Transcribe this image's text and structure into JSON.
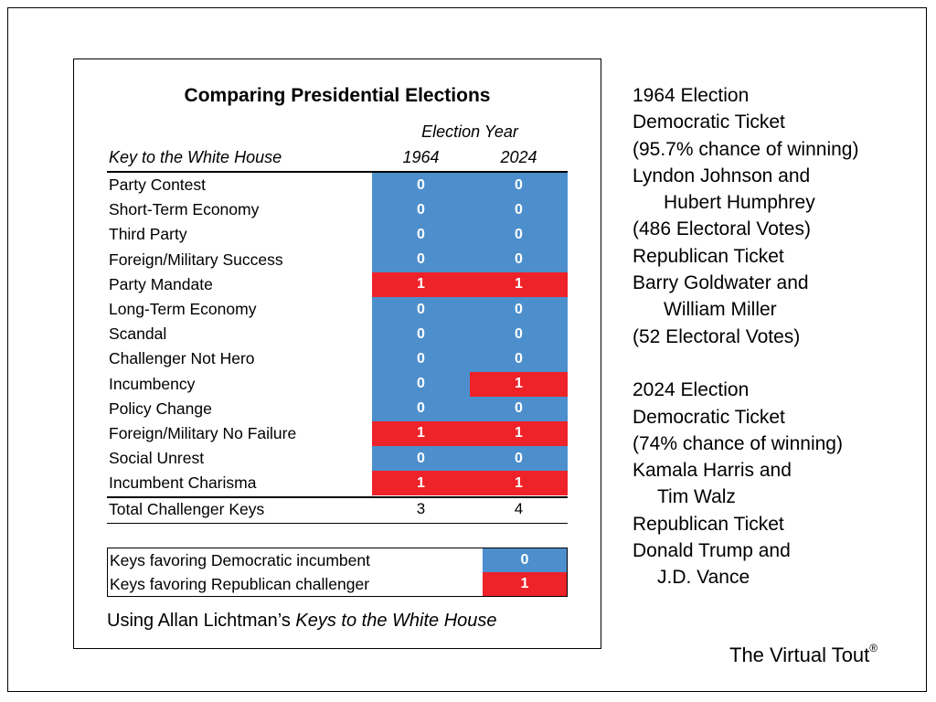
{
  "colors": {
    "blue": "#4d8fcc",
    "red": "#ee2229",
    "border": "#000000"
  },
  "chart_data": {
    "type": "table",
    "title": "Comparing Presidential Elections",
    "column_group": "Election Year",
    "row_header": "Key to the White House",
    "columns": [
      "1964",
      "2024"
    ],
    "rows": [
      {
        "label": "Party Contest",
        "values": [
          0,
          0
        ]
      },
      {
        "label": "Short-Term Economy",
        "values": [
          0,
          0
        ]
      },
      {
        "label": "Third Party",
        "values": [
          0,
          0
        ]
      },
      {
        "label": "Foreign/Military Success",
        "values": [
          0,
          0
        ]
      },
      {
        "label": "Party Mandate",
        "values": [
          1,
          1
        ]
      },
      {
        "label": "Long-Term Economy",
        "values": [
          0,
          0
        ]
      },
      {
        "label": "Scandal",
        "values": [
          0,
          0
        ]
      },
      {
        "label": "Challenger Not Hero",
        "values": [
          0,
          0
        ]
      },
      {
        "label": "Incumbency",
        "values": [
          0,
          1
        ]
      },
      {
        "label": "Policy Change",
        "values": [
          0,
          0
        ]
      },
      {
        "label": "Foreign/Military No Failure",
        "values": [
          1,
          1
        ]
      },
      {
        "label": "Social Unrest",
        "values": [
          0,
          0
        ]
      },
      {
        "label": "Incumbent Charisma",
        "values": [
          1,
          1
        ]
      }
    ],
    "total": {
      "label": "Total Challenger Keys",
      "values": [
        3,
        4
      ]
    },
    "legend": [
      {
        "label": "Keys favoring Democratic incumbent",
        "value": 0
      },
      {
        "label": "Keys favoring Republican challenger",
        "value": 1
      }
    ],
    "source_prefix": "Using Allan Lichtman’s ",
    "source_italic": "Keys to the White House"
  },
  "sidebar": {
    "e1964": {
      "heading": "1964 Election",
      "dem_label": "Democratic Ticket",
      "dem_chance": "(95.7% chance of winning)",
      "dem_line1": "Lyndon Johnson and",
      "dem_line2": "Hubert Humphrey",
      "dem_votes": "(486 Electoral Votes)",
      "rep_label": "Republican Ticket",
      "rep_line1": "Barry Goldwater and",
      "rep_line2": "William Miller",
      "rep_votes": "(52 Electoral Votes)"
    },
    "e2024": {
      "heading": "2024 Election",
      "dem_label": "Democratic Ticket",
      "dem_chance": "(74% chance of winning)",
      "dem_line1": "Kamala Harris and",
      "dem_line2": "Tim Walz",
      "rep_label": "Republican Ticket",
      "rep_line1": "Donald Trump and",
      "rep_line2": "J.D. Vance"
    }
  },
  "brand": {
    "name": "The Virtual Tout",
    "mark": "®"
  }
}
